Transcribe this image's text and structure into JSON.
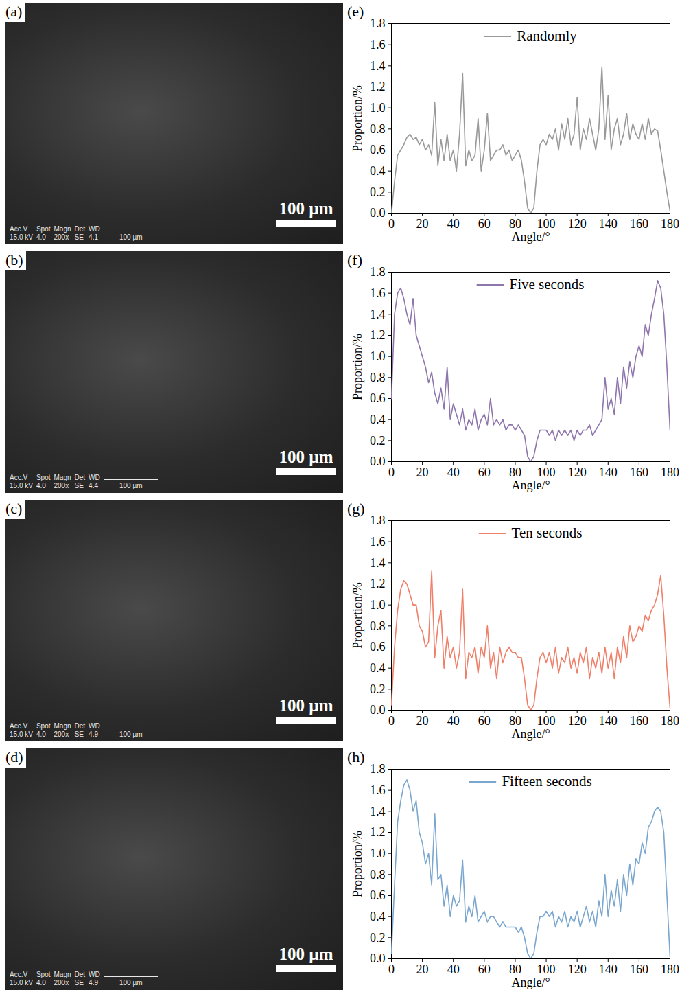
{
  "images": [
    {
      "label": "(a)",
      "info_header": [
        "Acc.V",
        "Spot",
        "Magn",
        "Det",
        "WD"
      ],
      "info_values": [
        "15.0 kV",
        "4.0",
        "200x",
        "SE",
        "4.1"
      ],
      "info_scale": "100 µm",
      "scale_bar": "100 µm"
    },
    {
      "label": "(b)",
      "info_header": [
        "Acc.V",
        "Spot",
        "Magn",
        "Det",
        "WD"
      ],
      "info_values": [
        "15.0 kV",
        "4.0",
        "200x",
        "SE",
        "4.4"
      ],
      "info_scale": "100 µm",
      "scale_bar": "100 µm"
    },
    {
      "label": "(c)",
      "info_header": [
        "Acc.V",
        "Spot",
        "Magn",
        "Det",
        "WD"
      ],
      "info_values": [
        "15.0 kV",
        "4.0",
        "200x",
        "SE",
        "4.9"
      ],
      "info_scale": "100 µm",
      "scale_bar": "100 µm"
    },
    {
      "label": "(d)",
      "info_header": [
        "Acc.V",
        "Spot",
        "Magn",
        "Det",
        "WD"
      ],
      "info_values": [
        "15.0 kV",
        "4.0",
        "200x",
        "SE",
        "4.9"
      ],
      "info_scale": "100 µm",
      "scale_bar": "100 µm"
    }
  ],
  "chart_data": [
    {
      "type": "line",
      "panel_label": "(e)",
      "xlabel": "Angle/°",
      "ylabel": "Proportion/%",
      "legend": "top",
      "grid": false,
      "xlim": [
        0,
        180
      ],
      "ylim": [
        0,
        1.8
      ],
      "xticks": [
        0,
        20,
        40,
        60,
        80,
        100,
        120,
        140,
        160,
        180
      ],
      "yticks": [
        {
          "value": 0,
          "label": "0.0"
        },
        {
          "value": 0.2,
          "label": "0.2"
        },
        {
          "value": 0.4,
          "label": "0.4"
        },
        {
          "value": 0.6,
          "label": "0.6"
        },
        {
          "value": 0.8,
          "label": "0.8"
        },
        {
          "value": 1.0,
          "label": "1.0"
        },
        {
          "value": 1.2,
          "label": "1.2"
        },
        {
          "value": 1.4,
          "label": "1.4"
        },
        {
          "value": 1.6,
          "label": "1.6"
        },
        {
          "value": 1.8,
          "label": "1.8"
        }
      ],
      "x": [
        0,
        2,
        4,
        6,
        8,
        10,
        12,
        14,
        16,
        18,
        20,
        22,
        24,
        26,
        28,
        30,
        32,
        34,
        36,
        38,
        40,
        42,
        44,
        46,
        48,
        50,
        52,
        54,
        56,
        58,
        60,
        62,
        64,
        66,
        68,
        70,
        72,
        74,
        76,
        78,
        80,
        82,
        84,
        86,
        88,
        90,
        92,
        94,
        96,
        98,
        100,
        102,
        104,
        106,
        108,
        110,
        112,
        114,
        116,
        118,
        120,
        122,
        124,
        126,
        128,
        130,
        132,
        134,
        136,
        138,
        140,
        142,
        144,
        146,
        148,
        150,
        152,
        154,
        156,
        158,
        160,
        162,
        164,
        166,
        168,
        170,
        172,
        174,
        176,
        178,
        180
      ],
      "series": [
        {
          "name": "Randomly",
          "color": "#999999",
          "values": [
            0,
            0.3,
            0.55,
            0.6,
            0.65,
            0.72,
            0.75,
            0.7,
            0.72,
            0.65,
            0.7,
            0.6,
            0.65,
            0.55,
            1.05,
            0.45,
            0.7,
            0.5,
            0.75,
            0.5,
            0.6,
            0.4,
            0.75,
            1.33,
            0.45,
            0.6,
            0.5,
            0.55,
            0.9,
            0.4,
            0.6,
            0.95,
            0.5,
            0.55,
            0.6,
            0.6,
            0.65,
            0.55,
            0.6,
            0.5,
            0.55,
            0.6,
            0.5,
            0.3,
            0.05,
            0,
            0.05,
            0.4,
            0.65,
            0.7,
            0.65,
            0.75,
            0.7,
            0.8,
            0.6,
            0.85,
            0.7,
            0.9,
            0.65,
            0.75,
            1.1,
            0.6,
            0.8,
            0.7,
            0.9,
            0.75,
            0.6,
            0.8,
            1.39,
            0.7,
            1.12,
            0.6,
            0.8,
            0.9,
            0.65,
            0.75,
            0.95,
            0.7,
            0.85,
            0.75,
            0.7,
            0.85,
            0.7,
            0.9,
            0.75,
            0.8,
            0.78,
            0.6,
            0.4,
            0.2,
            0.02
          ]
        }
      ]
    },
    {
      "type": "line",
      "panel_label": "(f)",
      "xlabel": "Angle/°",
      "ylabel": "Proportion/%",
      "legend": "top",
      "grid": false,
      "xlim": [
        0,
        180
      ],
      "ylim": [
        0,
        1.8
      ],
      "xticks": [
        0,
        20,
        40,
        60,
        80,
        100,
        120,
        140,
        160,
        180
      ],
      "yticks": [
        {
          "value": 0,
          "label": "0.0"
        },
        {
          "value": 0.2,
          "label": "0.2"
        },
        {
          "value": 0.4,
          "label": "0.4"
        },
        {
          "value": 0.6,
          "label": "0.6"
        },
        {
          "value": 0.8,
          "label": "0.8"
        },
        {
          "value": 1.0,
          "label": "1.0"
        },
        {
          "value": 1.2,
          "label": "1.2"
        },
        {
          "value": 1.4,
          "label": "1.4"
        },
        {
          "value": 1.6,
          "label": "1.6"
        },
        {
          "value": 1.8,
          "label": "1.8"
        }
      ],
      "x": [
        0,
        2,
        4,
        6,
        8,
        10,
        12,
        14,
        16,
        18,
        20,
        22,
        24,
        26,
        28,
        30,
        32,
        34,
        36,
        38,
        40,
        42,
        44,
        46,
        48,
        50,
        52,
        54,
        56,
        58,
        60,
        62,
        64,
        66,
        68,
        70,
        72,
        74,
        76,
        78,
        80,
        82,
        84,
        86,
        88,
        90,
        92,
        94,
        96,
        98,
        100,
        102,
        104,
        106,
        108,
        110,
        112,
        114,
        116,
        118,
        120,
        122,
        124,
        126,
        128,
        130,
        132,
        134,
        136,
        138,
        140,
        142,
        144,
        146,
        148,
        150,
        152,
        154,
        156,
        158,
        160,
        162,
        164,
        166,
        168,
        170,
        172,
        174,
        176,
        178,
        180
      ],
      "series": [
        {
          "name": "Five seconds",
          "color": "#8e76ad",
          "values": [
            0.6,
            1.4,
            1.6,
            1.65,
            1.55,
            1.4,
            1.3,
            1.55,
            1.2,
            1.1,
            1.0,
            0.9,
            0.75,
            0.85,
            0.65,
            0.55,
            0.7,
            0.5,
            0.9,
            0.4,
            0.55,
            0.45,
            0.35,
            0.5,
            0.3,
            0.4,
            0.35,
            0.5,
            0.3,
            0.4,
            0.45,
            0.35,
            0.6,
            0.35,
            0.4,
            0.35,
            0.4,
            0.3,
            0.35,
            0.35,
            0.3,
            0.35,
            0.3,
            0.25,
            0.05,
            0,
            0.05,
            0.2,
            0.3,
            0.3,
            0.3,
            0.25,
            0.3,
            0.2,
            0.3,
            0.25,
            0.3,
            0.25,
            0.3,
            0.2,
            0.3,
            0.25,
            0.3,
            0.3,
            0.35,
            0.25,
            0.3,
            0.35,
            0.4,
            0.8,
            0.5,
            0.6,
            0.45,
            0.8,
            0.55,
            0.9,
            0.7,
            0.95,
            0.8,
            1.0,
            1.1,
            1.0,
            1.3,
            1.2,
            1.4,
            1.55,
            1.72,
            1.65,
            1.4,
            0.9,
            0.3
          ]
        }
      ]
    },
    {
      "type": "line",
      "panel_label": "(g)",
      "xlabel": "Angle/°",
      "ylabel": "Proportion/%",
      "legend": "top",
      "grid": false,
      "xlim": [
        0,
        180
      ],
      "ylim": [
        0,
        1.8
      ],
      "xticks": [
        0,
        20,
        40,
        60,
        80,
        100,
        120,
        140,
        160,
        180
      ],
      "yticks": [
        {
          "value": 0,
          "label": "0.0"
        },
        {
          "value": 0.2,
          "label": "0.2"
        },
        {
          "value": 0.4,
          "label": "0.4"
        },
        {
          "value": 0.6,
          "label": "0.6"
        },
        {
          "value": 0.8,
          "label": "0.8"
        },
        {
          "value": 1.0,
          "label": "1.0"
        },
        {
          "value": 1.2,
          "label": "1.2"
        },
        {
          "value": 1.4,
          "label": "1.4"
        },
        {
          "value": 1.6,
          "label": "1.6"
        },
        {
          "value": 1.8,
          "label": "1.8"
        }
      ],
      "x": [
        0,
        2,
        4,
        6,
        8,
        10,
        12,
        14,
        16,
        18,
        20,
        22,
        24,
        26,
        28,
        30,
        32,
        34,
        36,
        38,
        40,
        42,
        44,
        46,
        48,
        50,
        52,
        54,
        56,
        58,
        60,
        62,
        64,
        66,
        68,
        70,
        72,
        74,
        76,
        78,
        80,
        82,
        84,
        86,
        88,
        90,
        92,
        94,
        96,
        98,
        100,
        102,
        104,
        106,
        108,
        110,
        112,
        114,
        116,
        118,
        120,
        122,
        124,
        126,
        128,
        130,
        132,
        134,
        136,
        138,
        140,
        142,
        144,
        146,
        148,
        150,
        152,
        154,
        156,
        158,
        160,
        162,
        164,
        166,
        168,
        170,
        172,
        174,
        176,
        178,
        180
      ],
      "series": [
        {
          "name": "Ten seconds",
          "color": "#f07f6a",
          "values": [
            0.05,
            0.6,
            0.95,
            1.15,
            1.23,
            1.2,
            1.1,
            1.0,
            1.0,
            0.8,
            0.75,
            0.6,
            0.65,
            1.32,
            0.5,
            0.8,
            0.95,
            0.4,
            0.7,
            0.5,
            0.6,
            0.4,
            0.55,
            1.15,
            0.3,
            0.55,
            0.5,
            0.6,
            0.35,
            0.6,
            0.5,
            0.8,
            0.4,
            0.55,
            0.3,
            0.6,
            0.45,
            0.55,
            0.6,
            0.55,
            0.55,
            0.5,
            0.5,
            0.3,
            0.05,
            0,
            0.05,
            0.3,
            0.5,
            0.55,
            0.45,
            0.55,
            0.4,
            0.6,
            0.35,
            0.5,
            0.45,
            0.6,
            0.4,
            0.5,
            0.35,
            0.55,
            0.45,
            0.6,
            0.3,
            0.5,
            0.4,
            0.55,
            0.35,
            0.6,
            0.4,
            0.55,
            0.3,
            0.6,
            0.45,
            0.7,
            0.5,
            0.8,
            0.65,
            0.7,
            0.8,
            0.75,
            0.9,
            0.85,
            0.95,
            1.0,
            1.1,
            1.28,
            0.9,
            0.4,
            0.02
          ]
        }
      ]
    },
    {
      "type": "line",
      "panel_label": "(h)",
      "xlabel": "Angle/°",
      "ylabel": "Proportion/%",
      "legend": "top",
      "grid": false,
      "xlim": [
        0,
        180
      ],
      "ylim": [
        0,
        1.8
      ],
      "xticks": [
        0,
        20,
        40,
        60,
        80,
        100,
        120,
        140,
        160,
        180
      ],
      "yticks": [
        {
          "value": 0,
          "label": "0.0"
        },
        {
          "value": 0.2,
          "label": "0.2"
        },
        {
          "value": 0.4,
          "label": "0.4"
        },
        {
          "value": 0.6,
          "label": "0.6"
        },
        {
          "value": 0.8,
          "label": "0.8"
        },
        {
          "value": 1.0,
          "label": "1.0"
        },
        {
          "value": 1.2,
          "label": "1.2"
        },
        {
          "value": 1.4,
          "label": "1.4"
        },
        {
          "value": 1.6,
          "label": "1.6"
        },
        {
          "value": 1.8,
          "label": "1.8"
        }
      ],
      "x": [
        0,
        2,
        4,
        6,
        8,
        10,
        12,
        14,
        16,
        18,
        20,
        22,
        24,
        26,
        28,
        30,
        32,
        34,
        36,
        38,
        40,
        42,
        44,
        46,
        48,
        50,
        52,
        54,
        56,
        58,
        60,
        62,
        64,
        66,
        68,
        70,
        72,
        74,
        76,
        78,
        80,
        82,
        84,
        86,
        88,
        90,
        92,
        94,
        96,
        98,
        100,
        102,
        104,
        106,
        108,
        110,
        112,
        114,
        116,
        118,
        120,
        122,
        124,
        126,
        128,
        130,
        132,
        134,
        136,
        138,
        140,
        142,
        144,
        146,
        148,
        150,
        152,
        154,
        156,
        158,
        160,
        162,
        164,
        166,
        168,
        170,
        172,
        174,
        176,
        178,
        180
      ],
      "series": [
        {
          "name": "Fifteen seconds",
          "color": "#7aa6cf",
          "values": [
            0.05,
            0.7,
            1.3,
            1.5,
            1.65,
            1.7,
            1.6,
            1.4,
            1.5,
            1.2,
            1.1,
            0.9,
            1.0,
            0.7,
            1.38,
            0.75,
            0.8,
            0.5,
            0.7,
            0.4,
            0.6,
            0.5,
            0.55,
            0.94,
            0.35,
            0.5,
            0.4,
            0.6,
            0.35,
            0.4,
            0.45,
            0.35,
            0.4,
            0.4,
            0.35,
            0.3,
            0.35,
            0.3,
            0.3,
            0.3,
            0.3,
            0.25,
            0.3,
            0.2,
            0.05,
            0,
            0.05,
            0.25,
            0.4,
            0.4,
            0.45,
            0.4,
            0.45,
            0.3,
            0.4,
            0.35,
            0.45,
            0.3,
            0.4,
            0.35,
            0.45,
            0.3,
            0.4,
            0.5,
            0.35,
            0.45,
            0.3,
            0.55,
            0.4,
            0.8,
            0.4,
            0.65,
            0.5,
            0.75,
            0.45,
            0.8,
            0.6,
            0.9,
            0.7,
            0.95,
            0.9,
            1.1,
            1.0,
            1.25,
            1.3,
            1.4,
            1.44,
            1.4,
            1.2,
            0.6,
            0.02
          ]
        }
      ]
    }
  ]
}
